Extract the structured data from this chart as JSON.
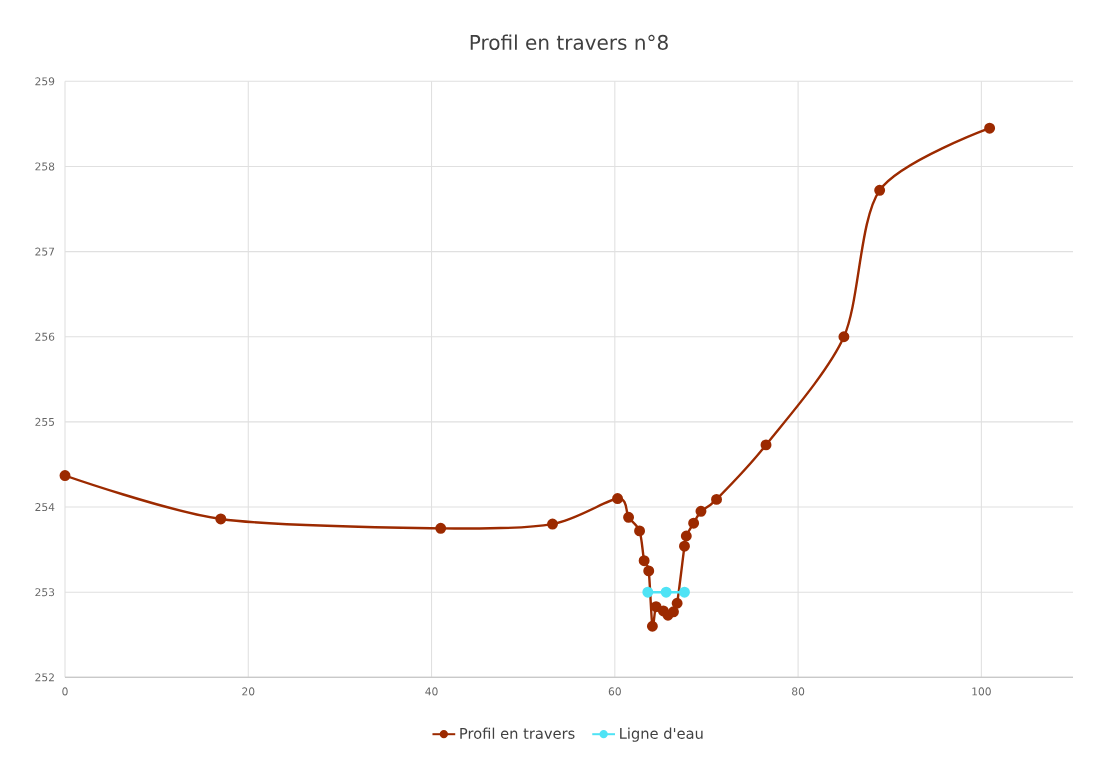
{
  "chart_data": {
    "type": "line",
    "title": "Profil en travers n°8",
    "series": [
      {
        "name": "Profil en travers",
        "color": "#9c2a00",
        "x": [
          0,
          17.0,
          41.0,
          53.2,
          60.3,
          61.5,
          62.7,
          63.2,
          63.7,
          64.1,
          64.5,
          65.3,
          65.8,
          66.4,
          66.8,
          67.6,
          67.8,
          68.6,
          69.4,
          71.1,
          76.5,
          85.0,
          88.9,
          100.9
        ],
        "values": [
          254.37,
          253.86,
          253.75,
          253.8,
          254.1,
          253.88,
          253.72,
          253.37,
          253.25,
          252.6,
          252.83,
          252.78,
          252.73,
          252.77,
          252.87,
          253.54,
          253.66,
          253.81,
          253.95,
          254.09,
          254.73,
          256.0,
          257.72,
          258.45
        ]
      },
      {
        "name": "Ligne d'eau",
        "color": "#4fe3f5",
        "x": [
          63.6,
          65.6,
          67.6
        ],
        "values": [
          253,
          253,
          253
        ]
      }
    ],
    "xlim": [
      0,
      110
    ],
    "xticks": [
      0,
      20,
      40,
      60,
      80,
      100
    ],
    "ylim": [
      252,
      259
    ],
    "yticks": [
      252,
      253,
      254,
      255,
      256,
      257,
      258,
      259
    ],
    "grid": true,
    "legend": "bottom",
    "marker": "circle",
    "line_style": "solid"
  }
}
